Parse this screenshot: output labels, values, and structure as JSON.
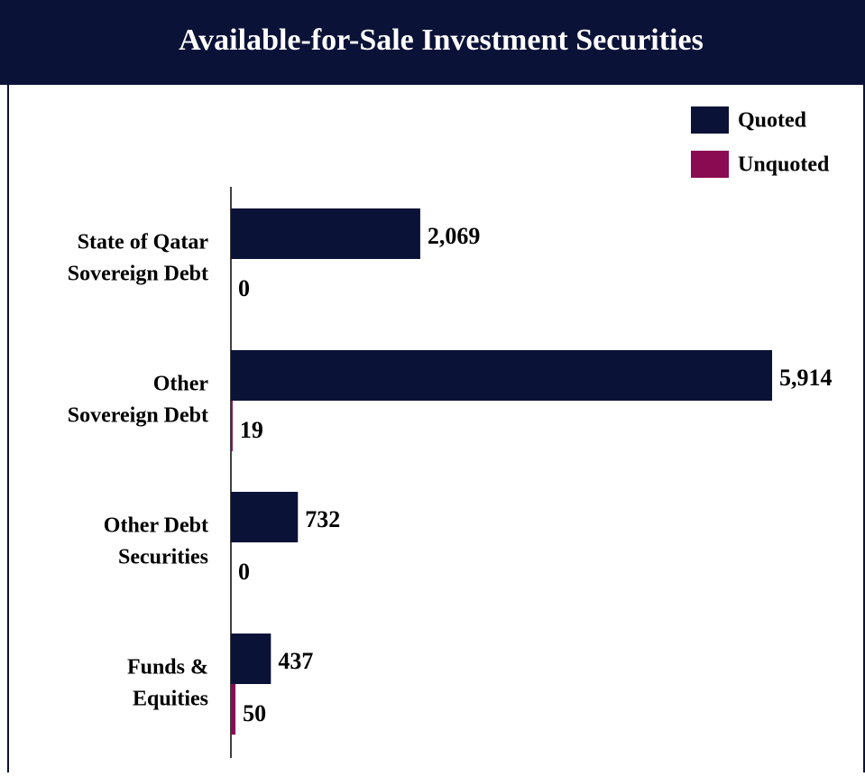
{
  "chart_data": {
    "type": "hbar",
    "title": "Available-for-Sale Investment Securities",
    "categories": [
      [
        "State of Qatar",
        "Sovereign Debt"
      ],
      [
        "Other",
        "Sovereign Debt"
      ],
      [
        "Other Debt",
        "Securities"
      ],
      [
        "Funds &",
        "Equities"
      ]
    ],
    "series": [
      {
        "name": "Quoted",
        "color": "#0b1237",
        "values": [
          2069,
          5914,
          732,
          437
        ],
        "value_labels": [
          "2,069",
          "5,914",
          "732",
          "437"
        ]
      },
      {
        "name": "Unquoted",
        "color": "#8b0b52",
        "values": [
          0,
          19,
          0,
          50
        ]
      }
    ],
    "legend": "top-right"
  }
}
